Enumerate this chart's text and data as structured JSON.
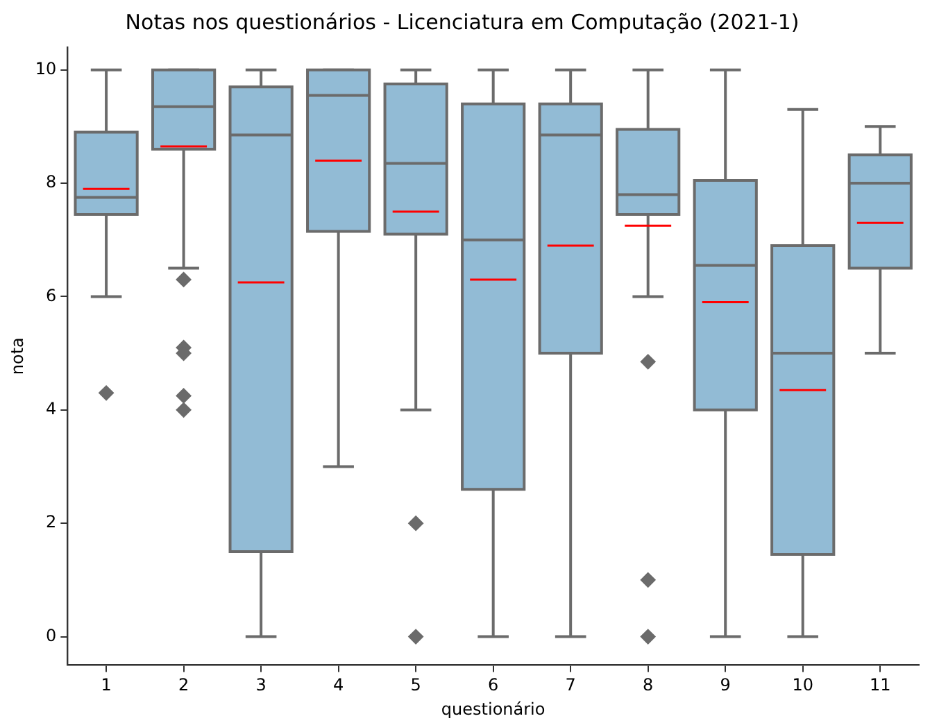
{
  "chart_data": {
    "type": "box",
    "title": "Notas nos questionários - Licenciatura em Computação (2021-1)",
    "xlabel": "questionário",
    "ylabel": "nota",
    "categories": [
      "1",
      "2",
      "3",
      "4",
      "5",
      "6",
      "7",
      "8",
      "9",
      "10",
      "11"
    ],
    "ylim": [
      -0.5,
      10.4
    ],
    "yticks": [
      0,
      2,
      4,
      6,
      8,
      10
    ],
    "grid": false,
    "legend": false,
    "marker": "diamond",
    "series": [
      {
        "color": "#92bbd5",
        "boxes": [
          {
            "low": 6,
            "q1": 7.45,
            "median": 7.75,
            "q3": 8.9,
            "high": 10,
            "mean": 7.9,
            "outliers": [
              4.3
            ]
          },
          {
            "low": 6.5,
            "q1": 8.6,
            "median": 9.35,
            "q3": 10,
            "high": 10,
            "mean": 8.65,
            "outliers": [
              6.3,
              5.1,
              5.0,
              4.25,
              4.0
            ]
          },
          {
            "low": 0,
            "q1": 1.5,
            "median": 8.85,
            "q3": 9.7,
            "high": 10,
            "mean": 6.25
          },
          {
            "low": 3,
            "q1": 7.15,
            "median": 9.55,
            "q3": 10,
            "high": 10,
            "mean": 8.4
          },
          {
            "low": 4,
            "q1": 7.1,
            "median": 8.35,
            "q3": 9.75,
            "high": 10,
            "mean": 7.5,
            "outliers": [
              2,
              0
            ]
          },
          {
            "low": 0,
            "q1": 2.6,
            "median": 7.0,
            "q3": 9.4,
            "high": 10,
            "mean": 6.3
          },
          {
            "low": 0,
            "q1": 5.0,
            "median": 8.85,
            "q3": 9.4,
            "high": 10,
            "mean": 6.9
          },
          {
            "low": 6,
            "q1": 7.45,
            "median": 7.8,
            "q3": 8.95,
            "high": 10,
            "mean": 7.25,
            "outliers": [
              4.85,
              1,
              0
            ]
          },
          {
            "low": 0,
            "q1": 4.0,
            "median": 6.55,
            "q3": 8.05,
            "high": 10,
            "mean": 5.9
          },
          {
            "low": 0,
            "q1": 1.45,
            "median": 5.0,
            "q3": 6.9,
            "high": 9.3,
            "mean": 4.35
          },
          {
            "low": 5,
            "q1": 6.5,
            "median": 8.0,
            "q3": 8.5,
            "high": 9,
            "mean": 7.3
          }
        ]
      }
    ]
  }
}
